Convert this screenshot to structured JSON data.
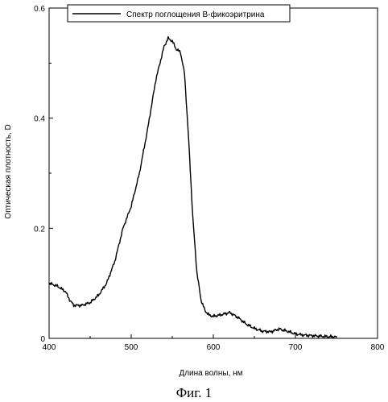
{
  "chart_data": {
    "type": "line",
    "xlabel": "Длина волны, нм",
    "ylabel": "Оптическая плотность, D",
    "xlim": [
      400,
      800
    ],
    "ylim": [
      0,
      0.6
    ],
    "xticks": [
      400,
      500,
      600,
      700,
      800
    ],
    "xtick_labels": [
      "400",
      "500",
      "600",
      "700",
      "800"
    ],
    "yticks": [
      0,
      0.2,
      0.4,
      0.6
    ],
    "ytick_labels": [
      "0",
      "0.2",
      "0.4",
      "0.6"
    ],
    "grid": false,
    "legend_position": "top-left",
    "series": [
      {
        "name": "Спектр поглощения В-фикоэритрина",
        "color": "#000000",
        "x": [
          400,
          410,
          420,
          425,
          430,
          440,
          450,
          460,
          470,
          480,
          490,
          500,
          510,
          520,
          530,
          540,
          545,
          550,
          555,
          560,
          565,
          570,
          575,
          580,
          585,
          590,
          595,
          600,
          610,
          620,
          630,
          640,
          650,
          660,
          670,
          680,
          690,
          700,
          710,
          720,
          730,
          740,
          750
        ],
        "y": [
          0.1,
          0.095,
          0.085,
          0.07,
          0.06,
          0.06,
          0.065,
          0.078,
          0.1,
          0.14,
          0.2,
          0.24,
          0.3,
          0.38,
          0.47,
          0.53,
          0.545,
          0.54,
          0.525,
          0.52,
          0.48,
          0.36,
          0.22,
          0.12,
          0.07,
          0.05,
          0.042,
          0.04,
          0.043,
          0.047,
          0.038,
          0.026,
          0.018,
          0.013,
          0.012,
          0.017,
          0.013,
          0.008,
          0.006,
          0.005,
          0.004,
          0.003,
          0.003
        ]
      }
    ]
  },
  "caption": "Фиг. 1"
}
